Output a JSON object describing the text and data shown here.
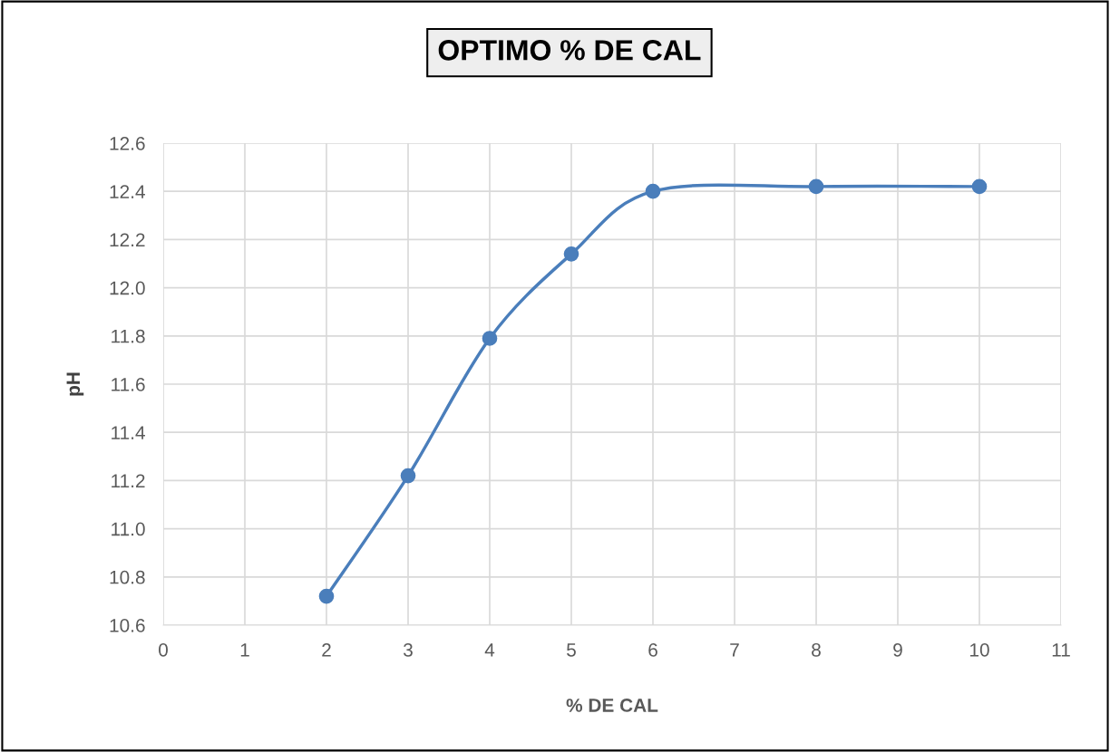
{
  "chart_data": {
    "type": "line",
    "title": "OPTIMO % DE CAL",
    "xlabel": "% DE CAL",
    "ylabel": "pH",
    "x": [
      2,
      3,
      4,
      5,
      6,
      8,
      10
    ],
    "series": [
      {
        "color": "#4a7ebb",
        "values": [
          10.72,
          11.22,
          11.79,
          12.14,
          12.4,
          12.42,
          12.42
        ]
      }
    ],
    "xlim": [
      0,
      11
    ],
    "xticks": [
      0,
      1,
      2,
      3,
      4,
      5,
      6,
      7,
      8,
      9,
      10,
      11
    ],
    "ylim": [
      10.6,
      12.6
    ],
    "yticks": [
      10.6,
      10.8,
      {
        "value": 11,
        "label": "11.0"
      },
      11.2,
      11.4,
      11.6,
      11.8,
      {
        "value": 12,
        "label": "12.0"
      },
      12.2,
      12.4,
      12.6
    ],
    "grid": true,
    "marker": "circle",
    "line_style": "solid"
  }
}
